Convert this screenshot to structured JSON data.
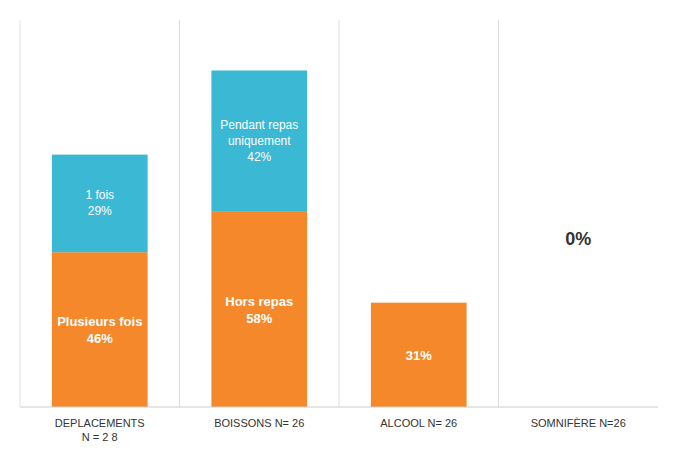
{
  "chart_data": {
    "type": "bar",
    "stacked": true,
    "categories": [
      "DEPLACEMENTS\nN = 2 8",
      "BOISSONS N= 26",
      "ALCOOL N= 26",
      "SOMNIFÈRE N=26"
    ],
    "series": [
      {
        "color": "#F5882A",
        "values": [
          46,
          58,
          31,
          0
        ],
        "value_labels": [
          "Plusieurs fois\n46%",
          "Hors repas\n58%",
          "31%",
          null
        ]
      },
      {
        "color": "#3AB8D4",
        "values": [
          29,
          42,
          0,
          0
        ],
        "value_labels": [
          "1 fois\n29%",
          "Pendant repas\nuniquement\n42%",
          null,
          null
        ]
      }
    ],
    "annotations": [
      {
        "text": "0%",
        "x": "SOMNIFÈRE N=26",
        "y": 50
      }
    ],
    "ylim": [
      0,
      115
    ],
    "data_labels": true,
    "tick_labels": "x",
    "grid": false
  }
}
